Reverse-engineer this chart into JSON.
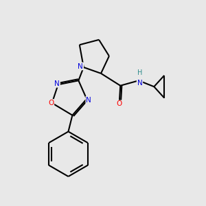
{
  "bg_color": "#e8e8e8",
  "atom_colors": {
    "N": "#0000dd",
    "O": "#ff0000",
    "C": "#000000",
    "H": "#2e8b8b"
  },
  "bond_color": "#000000",
  "bond_width": 1.5
}
